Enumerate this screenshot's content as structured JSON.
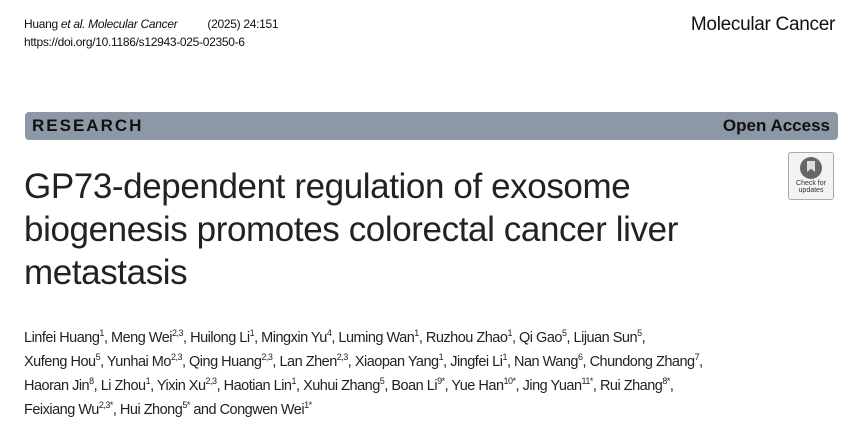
{
  "header": {
    "citation_author": "Huang",
    "citation_etal": " et al.",
    "citation_journal": " Molecular Cancer",
    "citation_year": "(2025) 24:151",
    "doi": "https://doi.org/10.1186/s12943-025-02350-6",
    "journal_name": "Molecular Cancer"
  },
  "banner": {
    "article_type": "RESEARCH",
    "access": "Open Access"
  },
  "badge": {
    "line1": "Check for",
    "line2": "updates"
  },
  "title_lines": [
    "GP73-dependent regulation of exosome",
    "biogenesis promotes colorectal cancer liver",
    "metastasis"
  ],
  "author_lines": [
    [
      {
        "name": "Linfei Huang",
        "sup": "1"
      },
      {
        "name": "Meng Wei",
        "sup": "2,3"
      },
      {
        "name": "Huilong Li",
        "sup": "1"
      },
      {
        "name": "Mingxin Yu",
        "sup": "4"
      },
      {
        "name": "Luming Wan",
        "sup": "1"
      },
      {
        "name": "Ruzhou Zhao",
        "sup": "1"
      },
      {
        "name": "Qi Gao",
        "sup": "5"
      },
      {
        "name": "Lijuan Sun",
        "sup": "5"
      }
    ],
    [
      {
        "name": "Xufeng Hou",
        "sup": "5"
      },
      {
        "name": "Yunhai Mo",
        "sup": "2,3"
      },
      {
        "name": "Qing Huang",
        "sup": "2,3"
      },
      {
        "name": "Lan Zhen",
        "sup": "2,3"
      },
      {
        "name": "Xiaopan Yang",
        "sup": "1"
      },
      {
        "name": "Jingfei Li",
        "sup": "1"
      },
      {
        "name": "Nan Wang",
        "sup": "6"
      },
      {
        "name": "Chundong Zhang",
        "sup": "7"
      }
    ],
    [
      {
        "name": "Haoran Jin",
        "sup": "8"
      },
      {
        "name": "Li Zhou",
        "sup": "1"
      },
      {
        "name": "Yixin Xu",
        "sup": "2,3"
      },
      {
        "name": "Haotian Lin",
        "sup": "1"
      },
      {
        "name": "Xuhui Zhang",
        "sup": "5"
      },
      {
        "name": "Boan Li",
        "sup": "9*"
      },
      {
        "name": "Yue Han",
        "sup": "10*"
      },
      {
        "name": "Jing Yuan",
        "sup": "11*"
      },
      {
        "name": "Rui Zhang",
        "sup": "8*"
      }
    ],
    [
      {
        "name": "Feixiang Wu",
        "sup": "2,3*"
      },
      {
        "name": "Hui Zhong",
        "sup": "5*"
      },
      {
        "name": "Congwen Wei",
        "sup": "1*"
      }
    ]
  ],
  "colors": {
    "banner": "#8e97a6"
  }
}
